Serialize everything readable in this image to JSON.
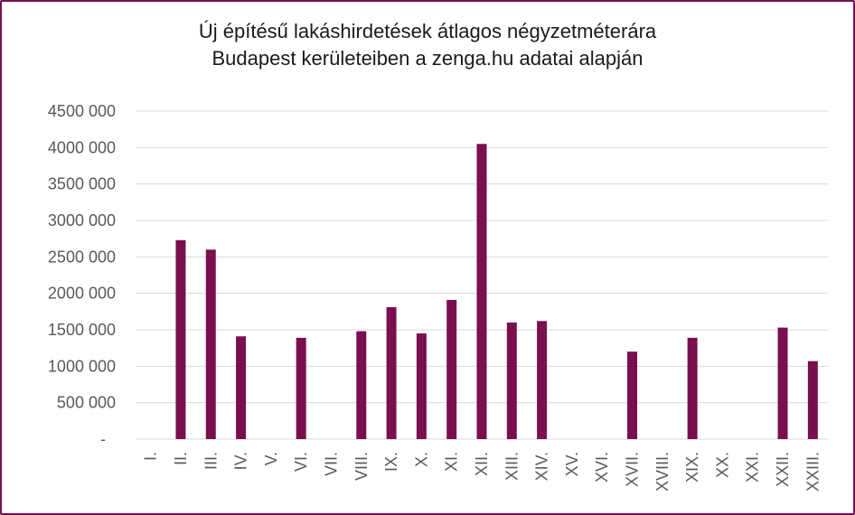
{
  "chart_data": {
    "type": "bar",
    "title_lines": [
      "Új építésű lakáshirdetések átlagos négyzetméterára",
      "Budapest kerületeiben a zenga.hu adatai alapján"
    ],
    "categories": [
      "I.",
      "II.",
      "III.",
      "IV.",
      "V.",
      "VI.",
      "VII.",
      "VIII.",
      "IX.",
      "X.",
      "XI.",
      "XII.",
      "XIII.",
      "XIV.",
      "XV.",
      "XVI.",
      "XVII.",
      "XVIII.",
      "XIX.",
      "XX.",
      "XXI.",
      "XXII.",
      "XXIII."
    ],
    "values": [
      0,
      2730000,
      2600000,
      1410000,
      0,
      1390000,
      0,
      1480000,
      1810000,
      1450000,
      1910000,
      4050000,
      1600000,
      1620000,
      0,
      0,
      1200000,
      0,
      1390000,
      0,
      0,
      1530000,
      1070000
    ],
    "ylim": [
      0,
      4500000
    ],
    "y_ticks": [
      0,
      500000,
      1000000,
      1500000,
      2000000,
      2500000,
      3000000,
      3500000,
      4000000,
      4500000
    ],
    "y_tick_labels": [
      "-",
      "500 000",
      "1000 000",
      "1500 000",
      "2000 000",
      "2500 000",
      "3000 000",
      "3500 000",
      "4000 000",
      "4500 000"
    ],
    "grid": true,
    "legend": "none",
    "bar_color": "#7a0f4f",
    "grid_color": "#d9d9d9",
    "frame_color": "#7a1050"
  }
}
